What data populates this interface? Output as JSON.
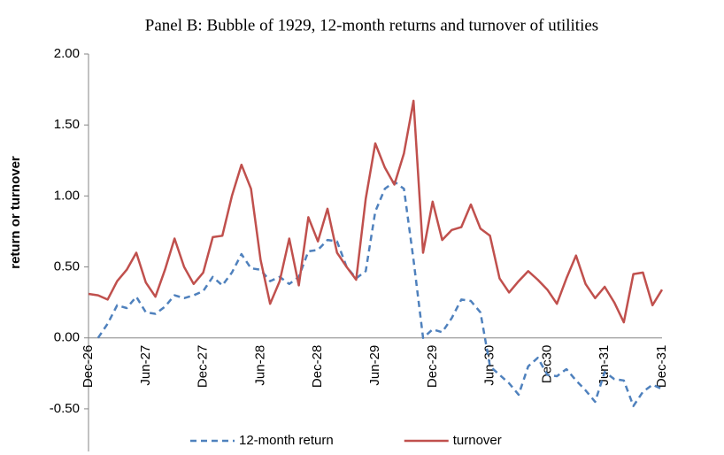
{
  "chart_data": {
    "type": "line",
    "title": "Panel B: Bubble of 1929, 12-month returns and turnover of utilities",
    "y_label": "return or turnover",
    "categories": [
      "Dec-26",
      null,
      null,
      null,
      null,
      null,
      "Jun-27",
      null,
      null,
      null,
      null,
      null,
      "Dec-27",
      null,
      null,
      null,
      null,
      null,
      "Jun-28",
      null,
      null,
      null,
      null,
      null,
      "Dec-28",
      null,
      null,
      null,
      null,
      null,
      "Jun-29",
      null,
      null,
      null,
      null,
      null,
      "Dec-29",
      null,
      null,
      null,
      null,
      null,
      "Jun-30",
      null,
      null,
      null,
      null,
      null,
      "Dec30",
      null,
      null,
      null,
      null,
      null,
      "Jun-31",
      null,
      null,
      null,
      null,
      null,
      "Dec-31"
    ],
    "series": [
      {
        "name": "12-month return",
        "color": "#4f81bd",
        "dash": true,
        "values": [
          null,
          0.0,
          0.1,
          0.23,
          0.21,
          0.29,
          0.18,
          0.17,
          0.22,
          0.3,
          0.28,
          0.3,
          0.33,
          0.43,
          0.37,
          0.46,
          0.59,
          0.49,
          0.48,
          0.4,
          0.43,
          0.38,
          0.43,
          0.61,
          0.62,
          0.69,
          0.68,
          0.5,
          0.42,
          0.47,
          0.89,
          1.05,
          1.1,
          1.05,
          0.55,
          0.0,
          0.06,
          0.04,
          0.14,
          0.27,
          0.26,
          0.18,
          -0.2,
          -0.26,
          -0.32,
          -0.4,
          -0.2,
          -0.14,
          -0.26,
          -0.27,
          -0.22,
          -0.3,
          -0.37,
          -0.45,
          -0.24,
          -0.29,
          -0.3,
          -0.48,
          -0.38,
          -0.33,
          -0.36
        ]
      },
      {
        "name": "turnover",
        "color": "#c0504d",
        "dash": false,
        "values": [
          0.31,
          0.3,
          0.27,
          0.4,
          0.48,
          0.6,
          0.39,
          0.29,
          0.48,
          0.7,
          0.5,
          0.38,
          0.46,
          0.71,
          0.72,
          1.0,
          1.22,
          1.05,
          0.55,
          0.24,
          0.4,
          0.7,
          0.37,
          0.85,
          0.68,
          0.91,
          0.6,
          0.5,
          0.41,
          0.98,
          1.37,
          1.2,
          1.08,
          1.3,
          1.67,
          0.6,
          0.96,
          0.69,
          0.76,
          0.78,
          0.94,
          0.77,
          0.72,
          0.42,
          0.32,
          0.4,
          0.47,
          0.41,
          0.34,
          0.24,
          0.42,
          0.58,
          0.38,
          0.28,
          0.36,
          0.25,
          0.11,
          0.45,
          0.46,
          0.23,
          0.34
        ]
      }
    ],
    "ylim": [
      -0.8,
      2.0
    ],
    "yticks": [
      {
        "value": -0.5,
        "label": "-0.50"
      },
      {
        "value": 0,
        "label": "0.00"
      },
      {
        "value": 0.5,
        "label": "0.50"
      },
      {
        "value": 1,
        "label": "1.00"
      },
      {
        "value": 1.5,
        "label": "1.50"
      },
      {
        "value": 2,
        "label": "2.00"
      }
    ],
    "grid": false,
    "legend": "bottom"
  }
}
